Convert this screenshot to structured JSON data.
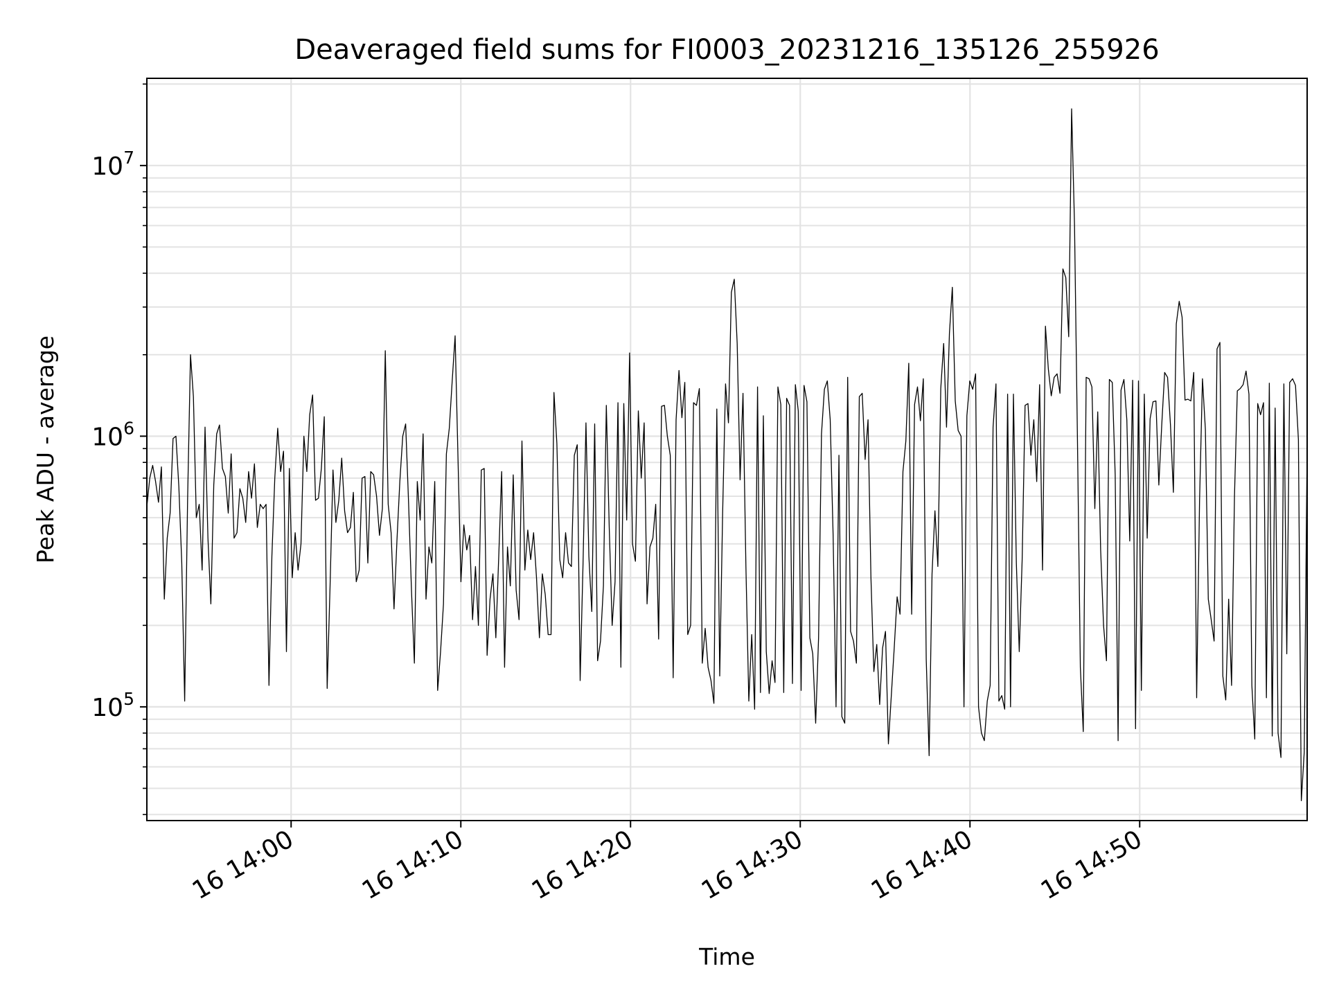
{
  "chart_data": {
    "type": "line",
    "title": "Deaveraged field sums for FI0003_20231216_135126_255926",
    "xlabel": "Time",
    "ylabel": "Peak ADU - average",
    "y_scale": "log",
    "ylim": [
      38000,
      21000000
    ],
    "xlim": [
      "2023-12-16 13:51:30",
      "2023-12-16 14:59:52"
    ],
    "grid": true,
    "line_color": "#000000",
    "x_tick_labels": [
      {
        "t": "2023-12-16 14:00:00",
        "label": "16 14:00"
      },
      {
        "t": "2023-12-16 14:10:00",
        "label": "16 14:10"
      },
      {
        "t": "2023-12-16 14:20:00",
        "label": "16 14:20"
      },
      {
        "t": "2023-12-16 14:30:00",
        "label": "16 14:30"
      },
      {
        "t": "2023-12-16 14:40:00",
        "label": "16 14:40"
      },
      {
        "t": "2023-12-16 14:50:00",
        "label": "16 14:50"
      }
    ],
    "y_tick_labels": [
      {
        "value": 100000,
        "base": "10",
        "exp": "5"
      },
      {
        "value": 1000000,
        "base": "10",
        "exp": "6"
      },
      {
        "value": 10000000,
        "base": "10",
        "exp": "7"
      }
    ],
    "series": [
      {
        "start": "2023-12-16 13:51:30",
        "end": "2023-12-16 14:59:52",
        "values": [
          550000,
          700000,
          780000,
          680000,
          570000,
          770000,
          250000,
          420000,
          520000,
          980000,
          1000000,
          650000,
          340000,
          105000,
          580000,
          2000000,
          1400000,
          500000,
          560000,
          320000,
          1080000,
          420000,
          240000,
          660000,
          1020000,
          1100000,
          760000,
          710000,
          520000,
          860000,
          420000,
          440000,
          640000,
          590000,
          480000,
          740000,
          590000,
          790000,
          460000,
          560000,
          540000,
          560000,
          120000,
          360000,
          700000,
          1070000,
          740000,
          880000,
          160000,
          760000,
          300000,
          440000,
          320000,
          400000,
          1000000,
          740000,
          1200000,
          1420000,
          580000,
          590000,
          760000,
          1180000,
          117000,
          280000,
          750000,
          480000,
          580000,
          830000,
          530000,
          440000,
          460000,
          620000,
          290000,
          320000,
          700000,
          710000,
          340000,
          740000,
          720000,
          600000,
          430000,
          540000,
          2070000,
          560000,
          440000,
          230000,
          410000,
          680000,
          1000000,
          1110000,
          570000,
          270000,
          145000,
          680000,
          490000,
          1020000,
          250000,
          390000,
          340000,
          680000,
          115000,
          160000,
          240000,
          860000,
          1070000,
          1600000,
          2350000,
          820000,
          290000,
          470000,
          380000,
          430000,
          210000,
          330000,
          200000,
          750000,
          760000,
          155000,
          250000,
          310000,
          180000,
          360000,
          740000,
          140000,
          390000,
          280000,
          720000,
          270000,
          210000,
          960000,
          320000,
          450000,
          350000,
          440000,
          300000,
          180000,
          310000,
          260000,
          185000,
          185000,
          1450000,
          940000,
          350000,
          300000,
          440000,
          340000,
          330000,
          850000,
          930000,
          125000,
          340000,
          1120000,
          360000,
          225000,
          1110000,
          148000,
          175000,
          280000,
          1300000,
          460000,
          200000,
          290000,
          1330000,
          140000,
          1320000,
          490000,
          2030000,
          400000,
          345000,
          1240000,
          700000,
          1120000,
          240000,
          390000,
          420000,
          560000,
          178000,
          1290000,
          1300000,
          1000000,
          850000,
          128000,
          1150000,
          1750000,
          1170000,
          1580000,
          185000,
          200000,
          1330000,
          1300000,
          1500000,
          145000,
          195000,
          140000,
          125000,
          103000,
          1260000,
          130000,
          520000,
          1560000,
          1120000,
          3400000,
          3800000,
          2200000,
          690000,
          1440000,
          330000,
          105000,
          185000,
          98000,
          1520000,
          113000,
          1190000,
          160000,
          112000,
          148000,
          123000,
          1520000,
          1310000,
          113000,
          1380000,
          1300000,
          122000,
          1550000,
          1240000,
          115000,
          1540000,
          1340000,
          180000,
          157000,
          87000,
          180000,
          1020000,
          1490000,
          1600000,
          1150000,
          430000,
          100000,
          850000,
          92000,
          87000,
          1650000,
          190000,
          175000,
          145000,
          1400000,
          1440000,
          820000,
          1150000,
          300000,
          135000,
          170000,
          102000,
          165000,
          190000,
          73000,
          110000,
          165000,
          255000,
          220000,
          740000,
          960000,
          1860000,
          220000,
          1310000,
          1520000,
          1140000,
          1630000,
          150000,
          66000,
          310000,
          530000,
          330000,
          1500000,
          2200000,
          1080000,
          2400000,
          3550000,
          1350000,
          1050000,
          1000000,
          100000,
          1190000,
          1600000,
          1490000,
          1700000,
          100000,
          80000,
          75000,
          105000,
          120000,
          1080000,
          1560000,
          105000,
          110000,
          98000,
          1430000,
          100000,
          1430000,
          340000,
          160000,
          350000,
          1300000,
          1320000,
          850000,
          1150000,
          680000,
          1550000,
          320000,
          2550000,
          1770000,
          1410000,
          1650000,
          1700000,
          1440000,
          4150000,
          3850000,
          2330000,
          16200000,
          6000000,
          980000,
          140000,
          81000,
          1650000,
          1630000,
          1520000,
          540000,
          1230000,
          380000,
          200000,
          148000,
          1620000,
          1580000,
          720000,
          75000,
          1480000,
          1620000,
          1150000,
          410000,
          1610000,
          83000,
          1600000,
          115000,
          1430000,
          420000,
          1160000,
          1340000,
          1350000,
          660000,
          1100000,
          1720000,
          1650000,
          1100000,
          620000,
          2600000,
          3150000,
          2750000,
          1360000,
          1370000,
          1350000,
          1720000,
          108000,
          580000,
          1630000,
          1060000,
          250000,
          210000,
          175000,
          2100000,
          2220000,
          130000,
          106000,
          250000,
          120000,
          600000,
          1470000,
          1500000,
          1550000,
          1740000,
          1430000,
          120000,
          76000,
          1320000,
          1200000,
          1330000,
          108000,
          1570000,
          78000,
          1270000,
          80000,
          65000,
          1560000,
          157000,
          1580000,
          1630000,
          1540000,
          970000,
          45000,
          68000,
          910000
        ]
      }
    ]
  }
}
